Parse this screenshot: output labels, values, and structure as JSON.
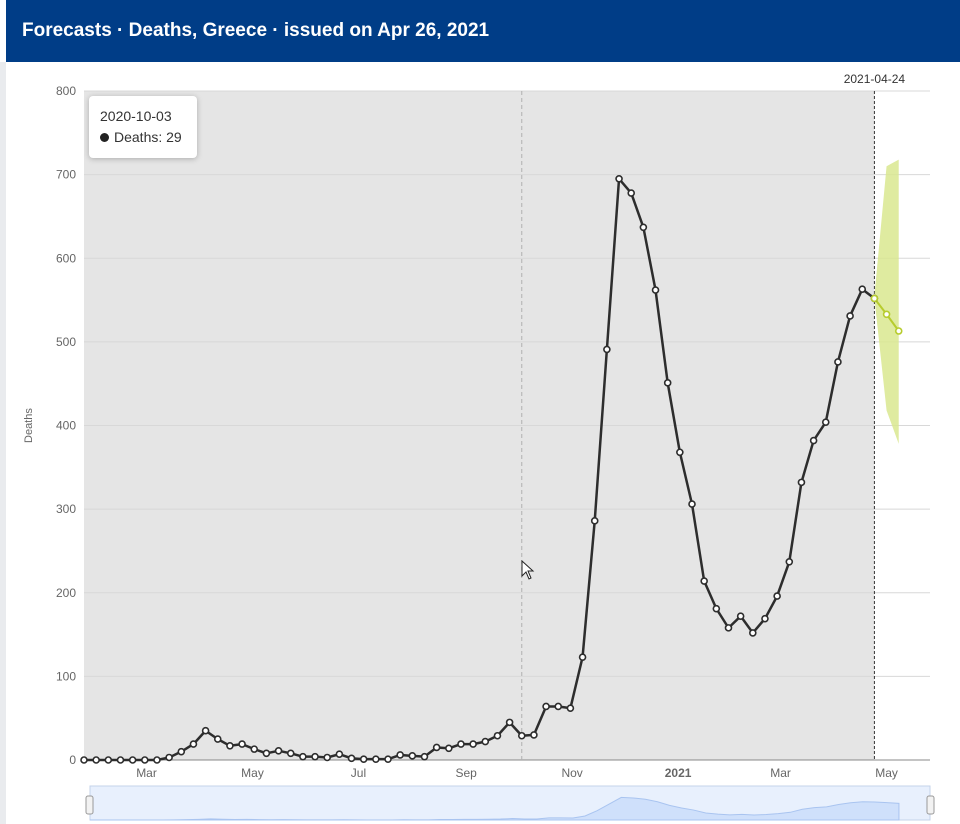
{
  "header": {
    "title": "Forecasts · Deaths, Greece  · issued on Apr 26, 2021"
  },
  "tooltip": {
    "date": "2020-10-03",
    "series_label": "Deaths: 29"
  },
  "colors": {
    "header_bg": "#003d87",
    "plot_bg": "#e5e5e5",
    "actual_line": "#2d2d2d",
    "forecast": "#b7cc2e",
    "forecast_band": "#d9e88f",
    "navigator": "#cfe0fb"
  },
  "chart_data": {
    "type": "line",
    "ylabel": "Deaths",
    "xlabel": "",
    "ylim": [
      0,
      800
    ],
    "yticks": [
      0,
      100,
      200,
      300,
      400,
      500,
      600,
      700,
      800
    ],
    "xticks": [
      {
        "date": "2020-03-01",
        "label": "Mar"
      },
      {
        "date": "2020-05-01",
        "label": "May"
      },
      {
        "date": "2020-07-01",
        "label": "Jul"
      },
      {
        "date": "2020-09-01",
        "label": "Sep"
      },
      {
        "date": "2020-11-01",
        "label": "Nov"
      },
      {
        "date": "2021-01-01",
        "label": "2021"
      },
      {
        "date": "2021-03-01",
        "label": "Mar"
      },
      {
        "date": "2021-05-01",
        "label": "May"
      }
    ],
    "x_range": [
      "2020-01-25",
      "2021-05-26"
    ],
    "grid": true,
    "forecast_start_label": "2021-04-24",
    "forecast_start": "2021-04-24",
    "hover_date": "2020-10-03",
    "series": [
      {
        "role": "actual",
        "dates": [
          "2020-01-25",
          "2020-02-01",
          "2020-02-08",
          "2020-02-15",
          "2020-02-22",
          "2020-02-29",
          "2020-03-07",
          "2020-03-14",
          "2020-03-21",
          "2020-03-28",
          "2020-04-04",
          "2020-04-11",
          "2020-04-18",
          "2020-04-25",
          "2020-05-02",
          "2020-05-09",
          "2020-05-16",
          "2020-05-23",
          "2020-05-30",
          "2020-06-06",
          "2020-06-13",
          "2020-06-20",
          "2020-06-27",
          "2020-07-04",
          "2020-07-11",
          "2020-07-18",
          "2020-07-25",
          "2020-08-01",
          "2020-08-08",
          "2020-08-15",
          "2020-08-22",
          "2020-08-29",
          "2020-09-05",
          "2020-09-12",
          "2020-09-19",
          "2020-09-26",
          "2020-10-03",
          "2020-10-10",
          "2020-10-17",
          "2020-10-24",
          "2020-10-31",
          "2020-11-07",
          "2020-11-14",
          "2020-11-21",
          "2020-11-28",
          "2020-12-05",
          "2020-12-12",
          "2020-12-19",
          "2020-12-26",
          "2021-01-02",
          "2021-01-09",
          "2021-01-16",
          "2021-01-23",
          "2021-01-30",
          "2021-02-06",
          "2021-02-13",
          "2021-02-20",
          "2021-02-27",
          "2021-03-06",
          "2021-03-13",
          "2021-03-20",
          "2021-03-27",
          "2021-04-03",
          "2021-04-10",
          "2021-04-17",
          "2021-04-24"
        ],
        "values": [
          0,
          0,
          0,
          0,
          0,
          0,
          0,
          3,
          10,
          19,
          35,
          25,
          17,
          19,
          13,
          8,
          11,
          8,
          4,
          4,
          3,
          7,
          2,
          1,
          1,
          1,
          6,
          5,
          4,
          15,
          14,
          19,
          19,
          22,
          29,
          45,
          29,
          30,
          64,
          64,
          62,
          123,
          286,
          491,
          695,
          678,
          637,
          562,
          451,
          368,
          306,
          214,
          181,
          158,
          172,
          152,
          169,
          196,
          237,
          332,
          382,
          404,
          476,
          531,
          563,
          552
        ]
      },
      {
        "role": "forecast",
        "dates": [
          "2021-04-24",
          "2021-05-01",
          "2021-05-08"
        ],
        "values": [
          552,
          533,
          513
        ],
        "band_upper": [
          555,
          710,
          718
        ],
        "band_lower": [
          552,
          418,
          378
        ]
      }
    ]
  }
}
